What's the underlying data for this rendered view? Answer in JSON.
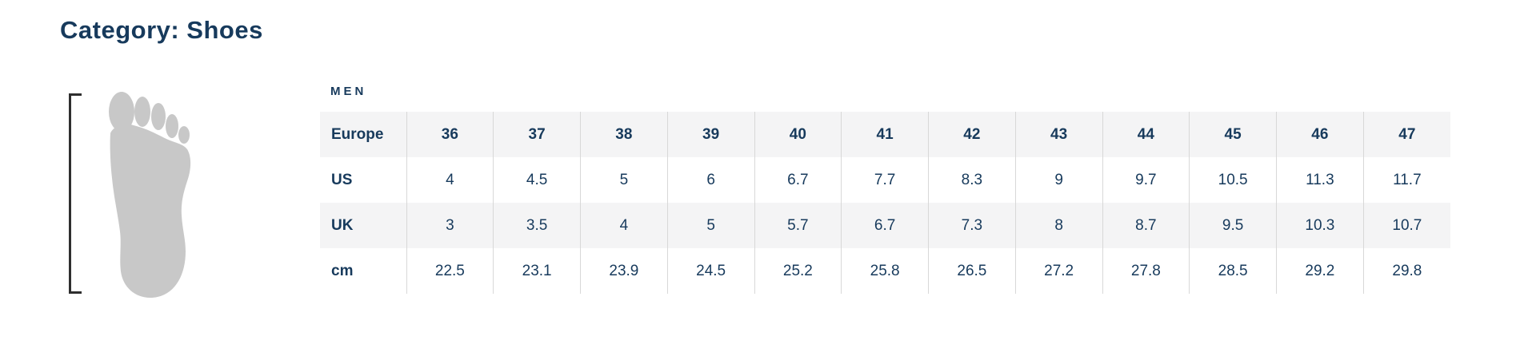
{
  "page": {
    "title": "Category: Shoes"
  },
  "colors": {
    "navy": "#173a5c",
    "stripe": "#f4f4f5",
    "divider": "#d8d8d8",
    "foot_gray": "#c8c8c8",
    "bracket": "#2e2e2e",
    "background": "#ffffff"
  },
  "illustration": {
    "icon": "foot-outline-icon"
  },
  "size_chart": {
    "group_label": "MEN",
    "rows": [
      {
        "label": "Europe",
        "header": true,
        "values": [
          "36",
          "37",
          "38",
          "39",
          "40",
          "41",
          "42",
          "43",
          "44",
          "45",
          "46",
          "47"
        ]
      },
      {
        "label": "US",
        "header": false,
        "values": [
          "4",
          "4.5",
          "5",
          "6",
          "6.7",
          "7.7",
          "8.3",
          "9",
          "9.7",
          "10.5",
          "11.3",
          "11.7"
        ]
      },
      {
        "label": "UK",
        "header": false,
        "values": [
          "3",
          "3.5",
          "4",
          "5",
          "5.7",
          "6.7",
          "7.3",
          "8",
          "8.7",
          "9.5",
          "10.3",
          "10.7"
        ]
      },
      {
        "label": "cm",
        "header": false,
        "values": [
          "22.5",
          "23.1",
          "23.9",
          "24.5",
          "25.2",
          "25.8",
          "26.5",
          "27.2",
          "27.8",
          "28.5",
          "29.2",
          "29.8"
        ]
      }
    ]
  }
}
